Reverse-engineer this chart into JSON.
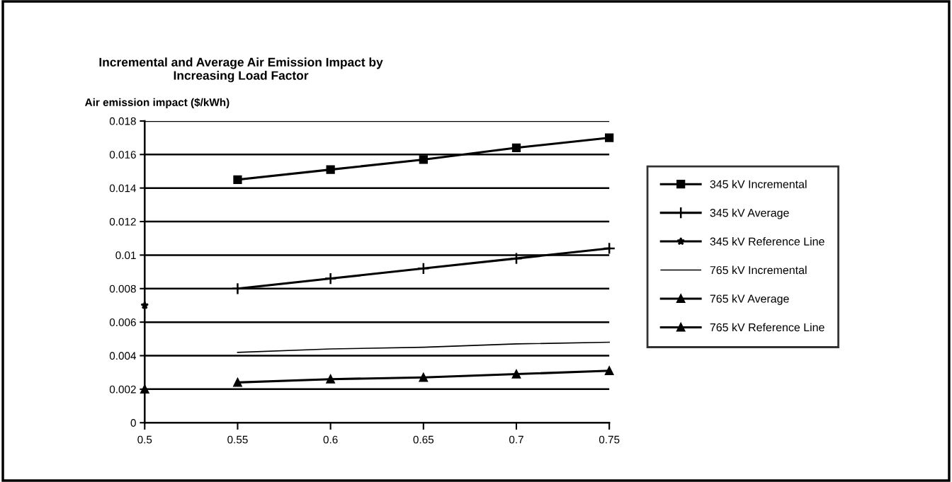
{
  "chart_data": {
    "type": "line",
    "title": "Incremental and Average Air Emission Impact by\nIncreasing Load Factor",
    "ylabel": "Air emission impact ($/kWh)",
    "xlim": [
      0.5,
      0.75
    ],
    "xticks": [
      0.5,
      0.55,
      0.6,
      0.65,
      0.7,
      0.75
    ],
    "ylim": [
      0,
      0.018
    ],
    "yticks": [
      0,
      0.002,
      0.004,
      0.006,
      0.008,
      0.01,
      0.012,
      0.014,
      0.016,
      0.018
    ],
    "grid": "y",
    "legend": "right",
    "series": [
      {
        "name": "345 kV Incremental",
        "color": "#000000",
        "marker": "square",
        "x": [
          0.55,
          0.6,
          0.65,
          0.7,
          0.75
        ],
        "values": [
          0.0145,
          0.0151,
          0.0157,
          0.0164,
          0.017
        ]
      },
      {
        "name": "345 kV Average",
        "color": "#000000",
        "marker": "cross",
        "x": [
          0.55,
          0.6,
          0.65,
          0.7,
          0.75
        ],
        "values": [
          0.008,
          0.0086,
          0.0092,
          0.0098,
          0.0104
        ]
      },
      {
        "name": "345 kV Reference Line",
        "color": "#000000",
        "marker": "star",
        "x": [
          0.5
        ],
        "values": [
          0.007
        ]
      },
      {
        "name": "765 kV Incremental",
        "color": "#000000",
        "marker": "none",
        "x": [
          0.55,
          0.6,
          0.65,
          0.7,
          0.75
        ],
        "values": [
          0.0042,
          0.0044,
          0.0045,
          0.0047,
          0.0048
        ]
      },
      {
        "name": "765 kV Average",
        "color": "#000000",
        "marker": "triangle",
        "x": [
          0.55,
          0.6,
          0.65,
          0.7,
          0.75
        ],
        "values": [
          0.0024,
          0.0026,
          0.0027,
          0.0029,
          0.0031
        ]
      },
      {
        "name": "765 kV Reference Line",
        "color": "#000000",
        "marker": "triangle",
        "x": [
          0.5
        ],
        "values": [
          0.002
        ]
      }
    ]
  }
}
